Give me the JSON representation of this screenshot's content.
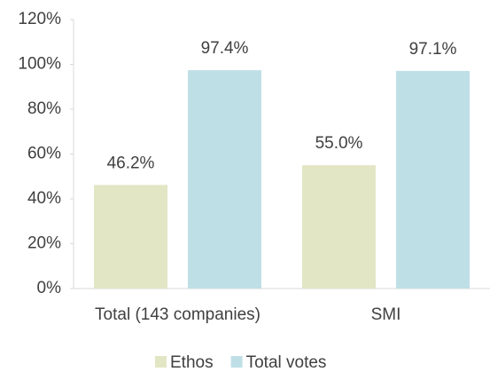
{
  "chart_data": {
    "type": "bar",
    "categories": [
      "Total (143 companies)",
      "SMI"
    ],
    "series": [
      {
        "name": "Ethos",
        "color": "#e2e6c4",
        "values": [
          46.2,
          55.0
        ],
        "value_labels": [
          "46.2%",
          "55.0%"
        ]
      },
      {
        "name": "Total votes",
        "color": "#bfdfe6",
        "values": [
          97.4,
          97.1
        ],
        "value_labels": [
          "97.4%",
          "97.1%"
        ]
      }
    ],
    "ylim": [
      0,
      120
    ],
    "yticks": [
      {
        "value": 0,
        "label": "0%"
      },
      {
        "value": 20,
        "label": "20%"
      },
      {
        "value": 40,
        "label": "40%"
      },
      {
        "value": 60,
        "label": "60%"
      },
      {
        "value": 80,
        "label": "80%"
      },
      {
        "value": 100,
        "label": "100%"
      },
      {
        "value": 120,
        "label": "120%"
      }
    ],
    "legend": "bottom"
  }
}
